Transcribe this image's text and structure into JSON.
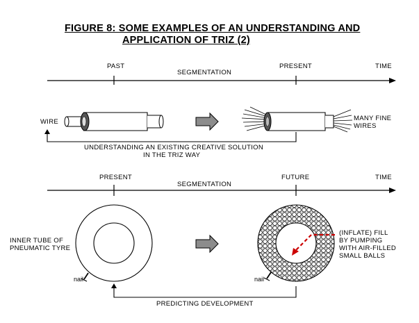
{
  "title": {
    "line1": "FIGURE 8:  SOME EXAMPLES OF AN UNDERSTANDING AND",
    "line2": "APPLICATION OF TRIZ (2)"
  },
  "top": {
    "past": "PAST",
    "present": "PRESENT",
    "time": "TIME",
    "segmentation": "SEGMENTATION",
    "wire": "WIRE",
    "many_fine_wires_1": "MANY FINE",
    "many_fine_wires_2": "WIRES",
    "caption_1": "UNDERSTANDING AN EXISTING CREATIVE SOLUTION",
    "caption_2": "IN THE TRIZ WAY"
  },
  "bottom": {
    "present": "PRESENT",
    "future": "FUTURE",
    "time": "TIME",
    "segmentation": "SEGMENTATION",
    "inner_tube_1": "INNER TUBE OF",
    "inner_tube_2": "PNEUMATIC TYRE",
    "nail_left": "nail",
    "nail_right": "nail",
    "fill_1": "(INFLATE) FILL",
    "fill_2": "BY PUMPING",
    "fill_3": "WITH AIR-FILLED",
    "fill_4": "SMALL BALLS",
    "caption": "PREDICTING DEVELOPMENT"
  },
  "colors": {
    "ink": "#000000",
    "arrow_grey": "#8c8c8c",
    "dashed_red": "#cc0000"
  }
}
